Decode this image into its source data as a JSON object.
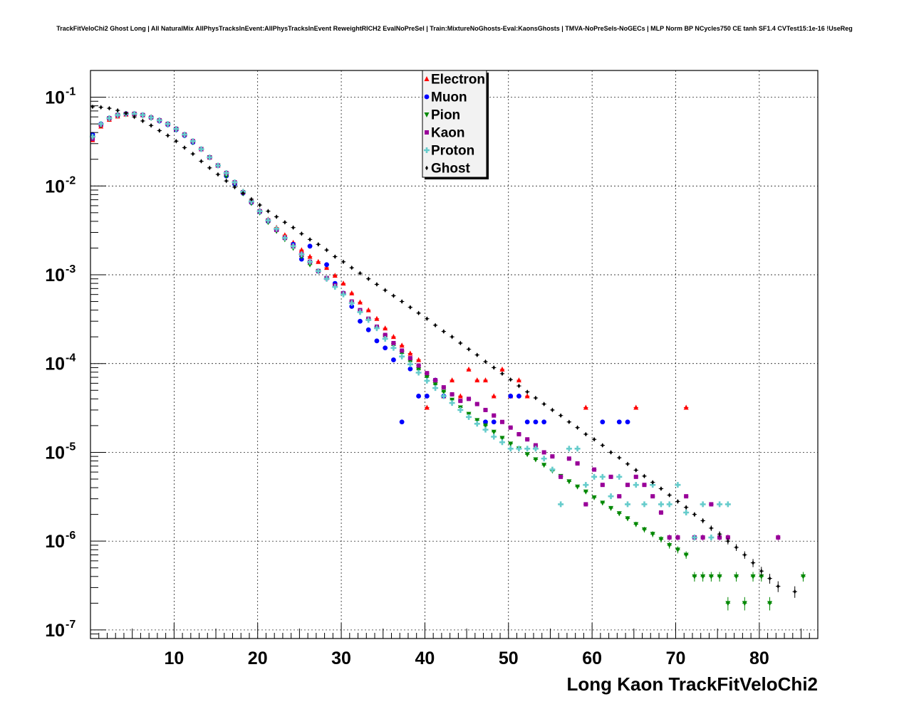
{
  "chart_data": {
    "type": "scatter",
    "title": "TrackFitVeloChi2 Ghost Long | All NaturalMix AllPhysTracksInEvent:AllPhysTracksInEvent ReweightRICH2 EvalNoPreSel | Train:MixtureNoGhosts-Eval:KaonsGhosts | TMVA-NoPreSels-NoGECs | MLP Norm BP NCycles750 CE tanh SF1.4 CVTest15:1e-16 !UseReg",
    "xlabel": "Long Kaon TrackFitVeloChi2",
    "ylabel": "",
    "xlim": [
      0,
      87
    ],
    "ylim": [
      8e-08,
      0.2
    ],
    "y_scale": "log",
    "grid": true,
    "legend_position": "top-center",
    "x_ticks": [
      10,
      20,
      30,
      40,
      50,
      60,
      70,
      80
    ],
    "x_tick_labels": [
      "10",
      "20",
      "30",
      "40",
      "50",
      "60",
      "70",
      "80"
    ],
    "y_ticks": [
      {
        "value": 1e-07,
        "base": "10",
        "exp": "-7"
      },
      {
        "value": 1e-06,
        "base": "10",
        "exp": "-6"
      },
      {
        "value": 1e-05,
        "base": "10",
        "exp": "-5"
      },
      {
        "value": 0.0001,
        "base": "10",
        "exp": "-4"
      },
      {
        "value": 0.001,
        "base": "10",
        "exp": "-3"
      },
      {
        "value": 0.01,
        "base": "10",
        "exp": "-2"
      },
      {
        "value": 0.1,
        "base": "10",
        "exp": "-1"
      }
    ],
    "series": [
      {
        "name": "Electron",
        "color": "#ff0000",
        "marker": "triangle-up",
        "x": [
          0.25,
          1.25,
          2.25,
          3.25,
          4.25,
          5.25,
          6.25,
          7.25,
          8.25,
          9.25,
          10.25,
          11.25,
          12.25,
          13.25,
          14.25,
          15.25,
          16.25,
          17.25,
          18.25,
          19.25,
          20.25,
          21.25,
          22.25,
          23.25,
          24.25,
          25.25,
          26.25,
          27.25,
          28.25,
          29.25,
          30.25,
          31.25,
          32.25,
          33.25,
          34.25,
          35.25,
          36.25,
          37.25,
          38.25,
          39.25,
          40.25,
          41.25,
          42.25,
          43.25,
          44.25,
          45.25,
          46.25,
          47.25,
          48.25,
          49.25,
          50.25,
          51.25,
          52.25,
          59.25,
          65.25,
          71.25
        ],
        "y": [
          0.033,
          0.047,
          0.056,
          0.061,
          0.064,
          0.065,
          0.063,
          0.06,
          0.055,
          0.05,
          0.044,
          0.038,
          0.032,
          0.026,
          0.021,
          0.017,
          0.014,
          0.011,
          0.0087,
          0.0068,
          0.0053,
          0.0042,
          0.0034,
          0.0028,
          0.0023,
          0.0019,
          0.0016,
          0.0014,
          0.0012,
          0.00098,
          0.0008,
          0.00062,
          0.00049,
          0.0004,
          0.00032,
          0.00025,
          0.0002,
          0.00016,
          0.00013,
          0.00011,
          3.2e-05,
          6.5e-05,
          4.3e-05,
          6.5e-05,
          4.3e-05,
          8.6e-05,
          6.5e-05,
          6.5e-05,
          4.3e-05,
          8.6e-05,
          4.3e-05,
          6.5e-05,
          4.3e-05,
          3.2e-05,
          3.2e-05,
          3.2e-05
        ]
      },
      {
        "name": "Muon",
        "color": "#0000ff",
        "marker": "circle",
        "x": [
          0.25,
          1.25,
          2.25,
          3.25,
          4.25,
          5.25,
          6.25,
          7.25,
          8.25,
          9.25,
          10.25,
          11.25,
          12.25,
          13.25,
          14.25,
          15.25,
          16.25,
          17.25,
          18.25,
          19.25,
          20.25,
          21.25,
          22.25,
          23.25,
          24.25,
          25.25,
          26.25,
          27.25,
          28.25,
          29.25,
          30.25,
          31.25,
          32.25,
          33.25,
          34.25,
          35.25,
          36.25,
          37.25,
          38.25,
          39.25,
          40.25,
          41.25,
          42.25,
          47.25,
          48.25,
          50.25,
          51.25,
          52.25,
          53.25,
          54.25,
          61.25,
          63.25,
          64.25
        ],
        "y": [
          0.038,
          0.05,
          0.058,
          0.063,
          0.065,
          0.065,
          0.063,
          0.059,
          0.054,
          0.049,
          0.043,
          0.037,
          0.031,
          0.026,
          0.021,
          0.017,
          0.013,
          0.0105,
          0.0083,
          0.0065,
          0.0051,
          0.004,
          0.0032,
          0.0026,
          0.0022,
          0.0015,
          0.0021,
          0.0011,
          0.0013,
          0.0008,
          0.00062,
          0.00044,
          0.0003,
          0.00024,
          0.00018,
          0.00015,
          0.00011,
          2.2e-05,
          8.7e-05,
          4.3e-05,
          4.3e-05,
          6.5e-05,
          4.3e-05,
          2.2e-05,
          2.2e-05,
          4.3e-05,
          4.3e-05,
          2.2e-05,
          2.2e-05,
          2.2e-05,
          2.2e-05,
          2.2e-05,
          2.2e-05
        ]
      },
      {
        "name": "Pion",
        "color": "#008800",
        "marker": "triangle-down",
        "x": [
          0.25,
          1.25,
          2.25,
          3.25,
          4.25,
          5.25,
          6.25,
          7.25,
          8.25,
          9.25,
          10.25,
          11.25,
          12.25,
          13.25,
          14.25,
          15.25,
          16.25,
          17.25,
          18.25,
          19.25,
          20.25,
          21.25,
          22.25,
          23.25,
          24.25,
          25.25,
          26.25,
          27.25,
          28.25,
          29.25,
          30.25,
          31.25,
          32.25,
          33.25,
          34.25,
          35.25,
          36.25,
          37.25,
          38.25,
          39.25,
          40.25,
          41.25,
          42.25,
          43.25,
          44.25,
          45.25,
          46.25,
          47.25,
          48.25,
          49.25,
          50.25,
          51.25,
          52.25,
          53.25,
          54.25,
          55.25,
          56.25,
          57.25,
          58.25,
          59.25,
          60.25,
          61.25,
          62.25,
          63.25,
          64.25,
          65.25,
          66.25,
          67.25,
          68.25,
          69.25,
          70.25,
          71.25,
          72.25,
          73.25,
          74.25,
          75.25,
          76.25,
          77.25,
          78.25,
          79.25,
          80.25,
          81.25,
          85.25
        ],
        "y": [
          0.035,
          0.048,
          0.057,
          0.062,
          0.064,
          0.064,
          0.062,
          0.058,
          0.054,
          0.049,
          0.043,
          0.037,
          0.031,
          0.026,
          0.021,
          0.017,
          0.013,
          0.0105,
          0.0082,
          0.0064,
          0.005,
          0.0039,
          0.0031,
          0.0025,
          0.002,
          0.0016,
          0.0013,
          0.0011,
          0.0009,
          0.00074,
          0.0006,
          0.00048,
          0.00038,
          0.00031,
          0.00025,
          0.0002,
          0.00016,
          0.00013,
          0.000105,
          8.5e-05,
          7e-05,
          5.8e-05,
          4.8e-05,
          3.9e-05,
          3.2e-05,
          2.7e-05,
          2.3e-05,
          2e-05,
          1.7e-05,
          1.45e-05,
          1.25e-05,
          1.1e-05,
          9.5e-06,
          8.3e-06,
          7.2e-06,
          6.2e-06,
          5.4e-06,
          4.7e-06,
          4.1e-06,
          3.6e-06,
          3.1e-06,
          2.7e-06,
          2.35e-06,
          2.05e-06,
          1.8e-06,
          1.55e-06,
          1.35e-06,
          1.2e-06,
          1.05e-06,
          9e-07,
          8e-07,
          7e-07,
          4e-07,
          4e-07,
          4e-07,
          4e-07,
          2e-07,
          4e-07,
          2e-07,
          4e-07,
          4e-07,
          2e-07,
          4e-07
        ]
      },
      {
        "name": "Kaon",
        "color": "#990099",
        "marker": "square",
        "x": [
          0.25,
          1.25,
          2.25,
          3.25,
          4.25,
          5.25,
          6.25,
          7.25,
          8.25,
          9.25,
          10.25,
          11.25,
          12.25,
          13.25,
          14.25,
          15.25,
          16.25,
          17.25,
          18.25,
          19.25,
          20.25,
          21.25,
          22.25,
          23.25,
          24.25,
          25.25,
          26.25,
          27.25,
          28.25,
          29.25,
          30.25,
          31.25,
          32.25,
          33.25,
          34.25,
          35.25,
          36.25,
          37.25,
          38.25,
          39.25,
          40.25,
          41.25,
          42.25,
          43.25,
          44.25,
          45.25,
          46.25,
          47.25,
          48.25,
          49.25,
          50.25,
          51.25,
          52.25,
          53.25,
          54.25,
          55.25,
          56.25,
          57.25,
          58.25,
          59.25,
          60.25,
          61.25,
          62.25,
          63.25,
          64.25,
          65.25,
          66.25,
          67.25,
          68.25,
          69.25,
          70.25,
          71.25,
          72.25,
          73.25,
          74.25,
          75.25,
          76.25,
          82.25
        ],
        "y": [
          0.034,
          0.049,
          0.058,
          0.063,
          0.065,
          0.065,
          0.063,
          0.059,
          0.055,
          0.05,
          0.044,
          0.038,
          0.032,
          0.026,
          0.021,
          0.017,
          0.014,
          0.011,
          0.0085,
          0.0066,
          0.0052,
          0.0041,
          0.0032,
          0.0026,
          0.0021,
          0.0017,
          0.0014,
          0.0011,
          0.00092,
          0.00076,
          0.00062,
          0.0005,
          0.0004,
          0.00032,
          0.00026,
          0.00021,
          0.00017,
          0.00014,
          0.000115,
          9.5e-05,
          7.8e-05,
          6.5e-05,
          5.4e-05,
          4.5e-05,
          3.8e-05,
          4e-05,
          3.5e-05,
          3e-05,
          2.6e-05,
          2.2e-05,
          1.9e-05,
          1.6e-05,
          1.4e-05,
          1.2e-05,
          1e-05,
          9e-06,
          5.3e-06,
          8.5e-06,
          7.5e-06,
          2.6e-06,
          6.4e-06,
          4.3e-06,
          5.3e-06,
          3.2e-06,
          4.3e-06,
          5.3e-06,
          4.3e-06,
          3.2e-06,
          2.1e-06,
          1.1e-06,
          1.1e-06,
          3.2e-06,
          1.1e-06,
          1.1e-06,
          2.6e-06,
          1.1e-06,
          1.1e-06,
          1.1e-06
        ]
      },
      {
        "name": "Proton",
        "color": "#66cccc",
        "marker": "cross",
        "x": [
          0.25,
          1.25,
          2.25,
          3.25,
          4.25,
          5.25,
          6.25,
          7.25,
          8.25,
          9.25,
          10.25,
          11.25,
          12.25,
          13.25,
          14.25,
          15.25,
          16.25,
          17.25,
          18.25,
          19.25,
          20.25,
          21.25,
          22.25,
          23.25,
          24.25,
          25.25,
          26.25,
          27.25,
          28.25,
          29.25,
          30.25,
          31.25,
          32.25,
          33.25,
          34.25,
          35.25,
          36.25,
          37.25,
          38.25,
          39.25,
          40.25,
          41.25,
          42.25,
          43.25,
          44.25,
          45.25,
          46.25,
          47.25,
          48.25,
          49.25,
          50.25,
          51.25,
          52.25,
          53.25,
          54.25,
          55.25,
          56.25,
          57.25,
          58.25,
          59.25,
          60.25,
          61.25,
          62.25,
          63.25,
          64.25,
          65.25,
          66.25,
          67.25,
          68.25,
          69.25,
          70.25,
          71.25,
          72.25,
          73.25,
          74.25,
          75.25,
          76.25
        ],
        "y": [
          0.036,
          0.05,
          0.058,
          0.063,
          0.065,
          0.065,
          0.063,
          0.059,
          0.055,
          0.05,
          0.044,
          0.038,
          0.032,
          0.026,
          0.021,
          0.017,
          0.014,
          0.011,
          0.0086,
          0.0067,
          0.0052,
          0.0041,
          0.0033,
          0.0026,
          0.0021,
          0.0017,
          0.0014,
          0.0011,
          0.0009,
          0.00073,
          0.0006,
          0.00048,
          0.00038,
          0.00031,
          0.00025,
          0.00019,
          0.00015,
          0.00012,
          9.8e-05,
          7.9e-05,
          6.4e-05,
          5.3e-05,
          4.3e-05,
          3.6e-05,
          3e-05,
          2.5e-05,
          2.1e-05,
          1.8e-05,
          1.5e-05,
          1.3e-05,
          1.1e-05,
          1.1e-05,
          1.1e-05,
          1.1e-05,
          8.5e-06,
          6.4e-06,
          2.6e-06,
          1.1e-05,
          1.1e-05,
          4.3e-06,
          5.3e-06,
          5.3e-06,
          3.2e-06,
          5.3e-06,
          2.6e-06,
          4.3e-06,
          2.6e-06,
          4.3e-06,
          2.6e-06,
          2.6e-06,
          4.3e-06,
          2.1e-06,
          1.1e-06,
          2.6e-06,
          1.1e-06,
          2.6e-06,
          2.6e-06
        ]
      },
      {
        "name": "Ghost",
        "color": "#000000",
        "marker": "diamond",
        "x": [
          0.25,
          1.25,
          2.25,
          3.25,
          4.25,
          5.25,
          6.25,
          7.25,
          8.25,
          9.25,
          10.25,
          11.25,
          12.25,
          13.25,
          14.25,
          15.25,
          16.25,
          17.25,
          18.25,
          19.25,
          20.25,
          21.25,
          22.25,
          23.25,
          24.25,
          25.25,
          26.25,
          27.25,
          28.25,
          29.25,
          30.25,
          31.25,
          32.25,
          33.25,
          34.25,
          35.25,
          36.25,
          37.25,
          38.25,
          39.25,
          40.25,
          41.25,
          42.25,
          43.25,
          44.25,
          45.25,
          46.25,
          47.25,
          48.25,
          49.25,
          50.25,
          51.25,
          52.25,
          53.25,
          54.25,
          55.25,
          56.25,
          57.25,
          58.25,
          59.25,
          60.25,
          61.25,
          62.25,
          63.25,
          64.25,
          65.25,
          66.25,
          67.25,
          68.25,
          69.25,
          70.25,
          71.25,
          72.25,
          73.25,
          74.25,
          75.25,
          76.25,
          77.25,
          78.25,
          79.25,
          80.25,
          81.25,
          82.25,
          84.25
        ],
        "y": [
          0.078,
          0.077,
          0.075,
          0.071,
          0.066,
          0.06,
          0.054,
          0.048,
          0.042,
          0.037,
          0.032,
          0.027,
          0.023,
          0.019,
          0.016,
          0.0135,
          0.0114,
          0.0097,
          0.0083,
          0.0071,
          0.0061,
          0.0052,
          0.0045,
          0.0039,
          0.0034,
          0.0029,
          0.0025,
          0.0022,
          0.0019,
          0.0016,
          0.0014,
          0.0012,
          0.00104,
          0.0009,
          0.00078,
          0.00067,
          0.00058,
          0.0005,
          0.00043,
          0.00037,
          0.00032,
          0.00027,
          0.00023,
          0.0002,
          0.00017,
          0.000145,
          0.000125,
          0.000105,
          9e-05,
          7.7e-05,
          6.6e-05,
          5.6e-05,
          4.8e-05,
          4.1e-05,
          3.5e-05,
          3e-05,
          2.6e-05,
          2.2e-05,
          1.9e-05,
          1.6e-05,
          1.4e-05,
          1.2e-05,
          1e-05,
          8.7e-06,
          7.4e-06,
          6.3e-06,
          5.4e-06,
          4.6e-06,
          3.9e-06,
          3.3e-06,
          2.8e-06,
          2.4e-06,
          2e-06,
          1.7e-06,
          1.4e-06,
          1.2e-06,
          1e-06,
          8.5e-07,
          7e-07,
          5.7e-07,
          4.6e-07,
          3.8e-07,
          3.1e-07,
          2.7e-07
        ]
      }
    ]
  }
}
